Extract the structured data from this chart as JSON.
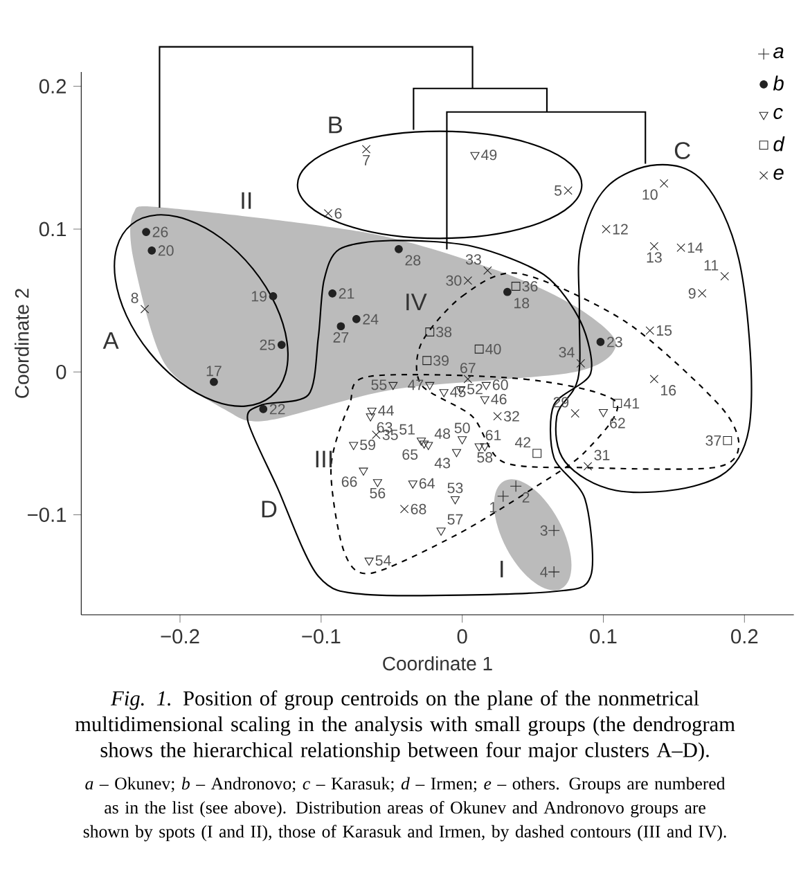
{
  "chart_data": {
    "type": "scatter",
    "xlabel": "Coordinate 1",
    "ylabel": "Coordinate 2",
    "xlim": [
      -0.27,
      0.235
    ],
    "ylim": [
      -0.17,
      0.21
    ],
    "xticks": [
      {
        "value": -0.2,
        "label": "−0.2"
      },
      {
        "value": -0.1,
        "label": "−0.1"
      },
      0,
      0.1,
      0.2
    ],
    "yticks": [
      {
        "value": -0.1,
        "label": "−0.1"
      },
      0,
      0.1,
      0.2
    ],
    "legend": "top right",
    "grid": false,
    "series": [
      {
        "name": "a",
        "color": "#222222",
        "marker": "plus",
        "x": [
          0.029,
          0.038,
          0.065,
          0.065
        ],
        "values": [
          -0.087,
          -0.08,
          -0.111,
          -0.14
        ]
      },
      {
        "name": "b",
        "color": "#222222",
        "marker": "circle",
        "x": [
          -0.224,
          -0.22,
          -0.134,
          -0.128,
          -0.176,
          -0.141,
          -0.092,
          -0.075,
          -0.086,
          -0.045,
          0.032,
          0.098
        ],
        "values": [
          0.098,
          0.085,
          0.053,
          0.019,
          -0.007,
          -0.026,
          0.055,
          0.037,
          0.032,
          0.086,
          0.056,
          0.021
        ]
      },
      {
        "name": "c",
        "color": "#222222",
        "marker": "triangle",
        "x": [
          0.009,
          -0.049,
          -0.023,
          -0.013,
          -0.001,
          0.017,
          0.016,
          -0.064,
          -0.065,
          -0.029,
          -0.024,
          -0.027,
          0.0,
          0.012,
          0.016,
          -0.004,
          -0.077,
          -0.07,
          -0.06,
          -0.035,
          -0.005,
          -0.015,
          -0.066,
          0.1
        ],
        "values": [
          0.152,
          -0.009,
          -0.009,
          -0.014,
          -0.012,
          -0.009,
          -0.019,
          -0.027,
          -0.031,
          -0.048,
          -0.051,
          -0.05,
          -0.047,
          -0.052,
          -0.052,
          -0.056,
          -0.051,
          -0.069,
          -0.077,
          -0.078,
          -0.089,
          -0.111,
          -0.132,
          -0.028
        ]
      },
      {
        "name": "d",
        "color": "#222222",
        "marker": "square",
        "x": [
          0.038,
          -0.023,
          -0.025,
          0.012,
          0.053,
          0.11,
          0.188
        ],
        "values": [
          0.06,
          0.028,
          0.008,
          0.016,
          -0.057,
          -0.022,
          -0.048
        ]
      },
      {
        "name": "e",
        "color": "#222222",
        "marker": "cross",
        "x": [
          -0.068,
          -0.095,
          0.075,
          -0.225,
          0.018,
          0.004,
          0.004,
          0.084,
          0.025,
          -0.061,
          -0.041,
          0.08,
          0.089,
          0.143,
          0.102,
          0.136,
          0.155,
          0.186,
          0.17,
          0.133,
          0.136
        ],
        "values": [
          0.156,
          0.111,
          0.127,
          0.044,
          0.071,
          0.064,
          -0.005,
          0.006,
          -0.031,
          -0.044,
          -0.096,
          -0.029,
          -0.066,
          0.132,
          0.1,
          0.088,
          0.087,
          0.067,
          0.055,
          0.029,
          -0.005
        ]
      }
    ],
    "annotations": [
      "A",
      "B",
      "C",
      "D",
      "I",
      "II",
      "III",
      "IV",
      "*Fig. 1.* Position of group centroids on the plane of the nonmetrical multidimensional scaling in the analysis with small groups (the dendrogram shows the hierarchical relationship between four major clusters A–D).",
      "*a* – Okunev; *b* – Andronovo; *c* – Karasuk; *d* – Irmen; *e* – others. Groups are numbered as in the list (see above). Distribution areas of Okunev and Andronovo groups are shown by spots (I and II), those of Karasuk and Irmen, by dashed contours (III and IV).",
      {
        "text": "1",
        "x": 0.029,
        "y": -0.087
      },
      {
        "text": "2",
        "x": 0.038,
        "y": -0.08
      },
      {
        "text": "3",
        "x": 0.065,
        "y": -0.111
      },
      {
        "text": "4",
        "x": 0.065,
        "y": -0.14
      },
      {
        "text": "26",
        "x": -0.224,
        "y": 0.098
      },
      {
        "text": "20",
        "x": -0.22,
        "y": 0.085
      },
      {
        "text": "19",
        "x": -0.134,
        "y": 0.053
      },
      {
        "text": "25",
        "x": -0.128,
        "y": 0.019
      },
      {
        "text": "17",
        "x": -0.176,
        "y": -0.007
      },
      {
        "text": "22",
        "x": -0.141,
        "y": -0.026
      },
      {
        "text": "21",
        "x": -0.092,
        "y": 0.055
      },
      {
        "text": "24",
        "x": -0.075,
        "y": 0.037
      },
      {
        "text": "27",
        "x": -0.086,
        "y": 0.032
      },
      {
        "text": "28",
        "x": -0.045,
        "y": 0.086
      },
      {
        "text": "18",
        "x": 0.032,
        "y": 0.056
      },
      {
        "text": "23",
        "x": 0.098,
        "y": 0.021
      },
      {
        "text": "49",
        "x": 0.009,
        "y": 0.152
      },
      {
        "text": "55",
        "x": -0.049,
        "y": -0.009
      },
      {
        "text": "47",
        "x": -0.023,
        "y": -0.009
      },
      {
        "text": "45",
        "x": -0.013,
        "y": -0.014
      },
      {
        "text": "52",
        "x": -0.001,
        "y": -0.012
      },
      {
        "text": "60",
        "x": 0.017,
        "y": -0.009
      },
      {
        "text": "46",
        "x": 0.016,
        "y": -0.019
      },
      {
        "text": "44",
        "x": -0.064,
        "y": -0.027
      },
      {
        "text": "63",
        "x": -0.065,
        "y": -0.031
      },
      {
        "text": "51",
        "x": -0.029,
        "y": -0.048
      },
      {
        "text": "48",
        "x": -0.024,
        "y": -0.051
      },
      {
        "text": "65",
        "x": -0.027,
        "y": -0.05
      },
      {
        "text": "50",
        "x": 0.0,
        "y": -0.047
      },
      {
        "text": "61",
        "x": 0.012,
        "y": -0.052
      },
      {
        "text": "58",
        "x": 0.016,
        "y": -0.052
      },
      {
        "text": "43",
        "x": -0.004,
        "y": -0.056
      },
      {
        "text": "59",
        "x": -0.077,
        "y": -0.051
      },
      {
        "text": "66",
        "x": -0.07,
        "y": -0.069
      },
      {
        "text": "56",
        "x": -0.06,
        "y": -0.077
      },
      {
        "text": "64",
        "x": -0.035,
        "y": -0.078
      },
      {
        "text": "53",
        "x": -0.005,
        "y": -0.089
      },
      {
        "text": "57",
        "x": -0.015,
        "y": -0.111
      },
      {
        "text": "54",
        "x": -0.066,
        "y": -0.132
      },
      {
        "text": "62",
        "x": 0.1,
        "y": -0.028
      },
      {
        "text": "36",
        "x": 0.038,
        "y": 0.06
      },
      {
        "text": "38",
        "x": -0.023,
        "y": 0.028
      },
      {
        "text": "39",
        "x": -0.025,
        "y": 0.008
      },
      {
        "text": "40",
        "x": 0.012,
        "y": 0.016
      },
      {
        "text": "42",
        "x": 0.053,
        "y": -0.057
      },
      {
        "text": "41",
        "x": 0.11,
        "y": -0.022
      },
      {
        "text": "37",
        "x": 0.188,
        "y": -0.048
      },
      {
        "text": "7",
        "x": -0.068,
        "y": 0.156
      },
      {
        "text": "6",
        "x": -0.095,
        "y": 0.111
      },
      {
        "text": "5",
        "x": 0.075,
        "y": 0.127
      },
      {
        "text": "8",
        "x": -0.225,
        "y": 0.044
      },
      {
        "text": "33",
        "x": 0.018,
        "y": 0.071
      },
      {
        "text": "30",
        "x": 0.004,
        "y": 0.064
      },
      {
        "text": "67",
        "x": 0.004,
        "y": -0.005
      },
      {
        "text": "34",
        "x": 0.084,
        "y": 0.006
      },
      {
        "text": "32",
        "x": 0.025,
        "y": -0.031
      },
      {
        "text": "35",
        "x": -0.061,
        "y": -0.044
      },
      {
        "text": "68",
        "x": -0.041,
        "y": -0.096
      },
      {
        "text": "29",
        "x": 0.08,
        "y": -0.029
      },
      {
        "text": "31",
        "x": 0.089,
        "y": -0.066
      },
      {
        "text": "10",
        "x": 0.143,
        "y": 0.132
      },
      {
        "text": "12",
        "x": 0.102,
        "y": 0.1
      },
      {
        "text": "13",
        "x": 0.136,
        "y": 0.088
      },
      {
        "text": "14",
        "x": 0.155,
        "y": 0.087
      },
      {
        "text": "11",
        "x": 0.186,
        "y": 0.067
      },
      {
        "text": "9",
        "x": 0.17,
        "y": 0.055
      },
      {
        "text": "15",
        "x": 0.133,
        "y": 0.029
      },
      {
        "text": "16",
        "x": 0.136,
        "y": -0.005
      }
    ]
  }
}
